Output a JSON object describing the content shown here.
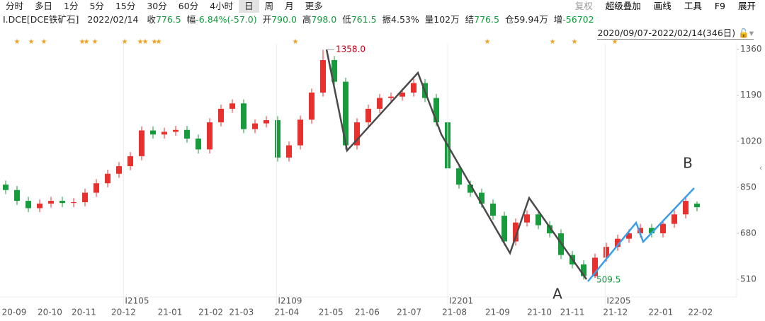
{
  "toolbar": {
    "tabs": [
      "分时",
      "多日",
      "1分",
      "5分",
      "15分",
      "30分",
      "60分",
      "4小时",
      "日",
      "周",
      "月",
      "更多"
    ],
    "selected": 8,
    "buttons": [
      "复权",
      "超级叠加",
      "画线",
      "工具",
      "F9",
      "展开"
    ]
  },
  "info": {
    "symbol": "I.DCE[DCE铁矿石]",
    "date": "2022/02/14",
    "quote": [
      {
        "label": "收",
        "value": "776.5",
        "color": "#119a3b"
      },
      {
        "label": "幅",
        "value": "-6.84%(-57.0)",
        "color": "#119a3b"
      },
      {
        "label": "开",
        "value": "790.0",
        "color": "#119a3b"
      },
      {
        "label": "高",
        "value": "798.0",
        "color": "#119a3b"
      },
      {
        "label": "低",
        "value": "761.5",
        "color": "#119a3b"
      },
      {
        "label": "振",
        "value": "4.53%",
        "color": "#222222"
      },
      {
        "label": "量",
        "value": "102万",
        "color": "#222222"
      },
      {
        "label": "结",
        "value": "776.5",
        "color": "#119a3b"
      },
      {
        "label": "仓",
        "value": "59.94万",
        "color": "#222222"
      },
      {
        "label": "增",
        "value": "-56702",
        "color": "#119a3b"
      }
    ],
    "range": "2020/09/07-2022/02/14(346日)"
  },
  "chart_data": {
    "type": "candlestick",
    "up_color": "#e8312f",
    "down_color": "#169c3c",
    "open": [
      860,
      840,
      800,
      773,
      790,
      800,
      792,
      795,
      830,
      865,
      900,
      928,
      965,
      1060,
      1045,
      1055,
      1062,
      1030,
      990,
      1090,
      1140,
      1160,
      1065,
      1086,
      1098,
      960,
      1005,
      1100,
      1200,
      1320,
      1240,
      1005,
      1090,
      1140,
      1180,
      1185,
      1200,
      1235,
      1180,
      1090,
      920,
      860,
      830,
      790,
      745,
      650,
      720,
      750,
      710,
      680,
      600,
      565,
      522,
      590,
      630,
      660,
      680,
      700,
      680,
      715,
      750,
      790
    ],
    "high": [
      875,
      855,
      815,
      805,
      815,
      815,
      810,
      845,
      880,
      915,
      943,
      980,
      1075,
      1075,
      1070,
      1077,
      1077,
      1045,
      1105,
      1155,
      1175,
      1175,
      1101,
      1113,
      1113,
      1020,
      1115,
      1215,
      1358,
      1335,
      1255,
      1105,
      1155,
      1195,
      1200,
      1215,
      1250,
      1250,
      1195,
      1105,
      935,
      875,
      845,
      805,
      760,
      735,
      765,
      765,
      725,
      695,
      615,
      580,
      605,
      645,
      675,
      695,
      715,
      715,
      730,
      765,
      815,
      798
    ],
    "low": [
      825,
      785,
      758,
      758,
      775,
      777,
      777,
      780,
      815,
      850,
      885,
      913,
      950,
      1030,
      1030,
      1040,
      1015,
      975,
      975,
      1075,
      1125,
      1050,
      1050,
      1071,
      945,
      945,
      990,
      1085,
      1185,
      1225,
      990,
      990,
      1075,
      1125,
      1165,
      1170,
      1185,
      1165,
      1075,
      905,
      845,
      815,
      775,
      730,
      635,
      635,
      705,
      695,
      665,
      585,
      550,
      509.5,
      515,
      575,
      615,
      645,
      665,
      665,
      665,
      700,
      735,
      761.5
    ],
    "close": [
      840,
      800,
      773,
      790,
      800,
      792,
      795,
      830,
      865,
      900,
      928,
      965,
      1060,
      1045,
      1055,
      1062,
      1030,
      990,
      1090,
      1140,
      1160,
      1065,
      1086,
      1098,
      960,
      1005,
      1100,
      1200,
      1320,
      1240,
      1005,
      1090,
      1140,
      1180,
      1185,
      1200,
      1235,
      1180,
      1090,
      920,
      860,
      830,
      790,
      745,
      650,
      720,
      750,
      710,
      680,
      600,
      565,
      522,
      590,
      630,
      660,
      680,
      700,
      680,
      715,
      750,
      800,
      776.5
    ],
    "ylim": [
      445,
      1380
    ],
    "yticks": [
      510,
      680,
      850,
      1020,
      1190,
      1360
    ],
    "xlim": [
      0,
      65
    ],
    "xticks": [
      {
        "value": 1.25,
        "label": "20-09"
      },
      {
        "value": 4.4,
        "label": "20-10"
      },
      {
        "value": 7.4,
        "label": "20-11"
      },
      {
        "value": 10.9,
        "label": "20-12"
      },
      {
        "value": 15,
        "label": "21-01"
      },
      {
        "value": 18.6,
        "label": "21-02"
      },
      {
        "value": 21.3,
        "label": "21-03"
      },
      {
        "value": 25.3,
        "label": "21-04"
      },
      {
        "value": 29.2,
        "label": "21-05"
      },
      {
        "value": 32.4,
        "label": "21-06"
      },
      {
        "value": 36.1,
        "label": "21-07"
      },
      {
        "value": 40.1,
        "label": "21-08"
      },
      {
        "value": 43.9,
        "label": "21-09"
      },
      {
        "value": 47.6,
        "label": "21-10"
      },
      {
        "value": 50.5,
        "label": "21-11"
      },
      {
        "value": 54.3,
        "label": "21-12"
      },
      {
        "value": 58.3,
        "label": "22-01"
      },
      {
        "value": 61.8,
        "label": "22-02"
      }
    ],
    "contract_ticks": [
      {
        "value": 10.9,
        "label": "I2105"
      },
      {
        "value": 24.4,
        "label": "I2109"
      },
      {
        "value": 39.5,
        "label": "I2201"
      },
      {
        "value": 53.4,
        "label": "I2205"
      }
    ],
    "max_label": "1358.0",
    "min_label": "509.5",
    "marker_a": "A",
    "marker_b": "B"
  }
}
